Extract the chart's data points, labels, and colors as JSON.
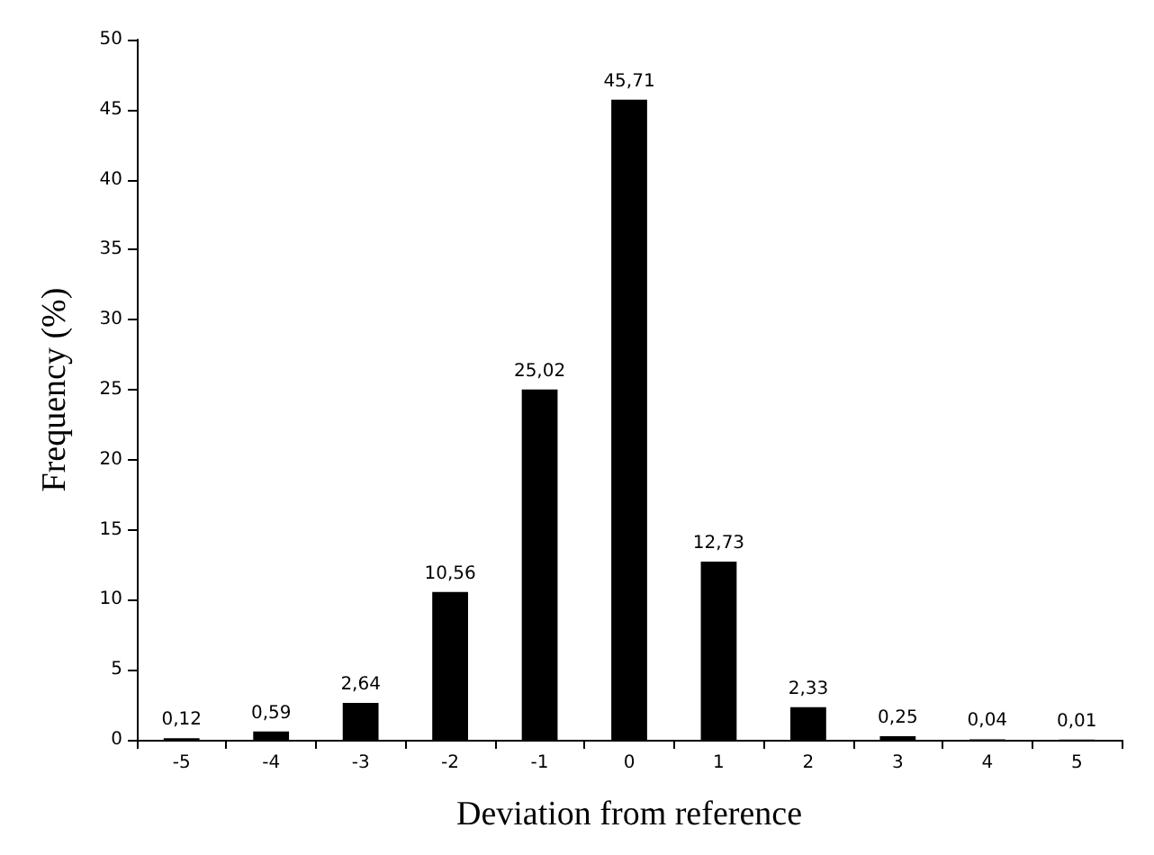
{
  "chart_data": {
    "type": "bar",
    "xlabel": "Deviation from reference",
    "ylabel": "Frequency (%)",
    "categories": [
      "-5",
      "-4",
      "-3",
      "-2",
      "-1",
      "0",
      "1",
      "2",
      "3",
      "4",
      "5"
    ],
    "values": [
      0.12,
      0.59,
      2.64,
      10.56,
      25.02,
      45.71,
      12.73,
      2.33,
      0.25,
      0.04,
      0.01
    ],
    "value_labels": [
      "0,12",
      "0,59",
      "2,64",
      "10,56",
      "25,02",
      "45,71",
      "12,73",
      "2,33",
      "0,25",
      "0,04",
      "0,01"
    ],
    "color": "#000000",
    "ylim": [
      0,
      50
    ],
    "yticks": [
      0,
      5,
      10,
      15,
      20,
      25,
      30,
      35,
      40,
      45,
      50
    ],
    "grid": false
  }
}
